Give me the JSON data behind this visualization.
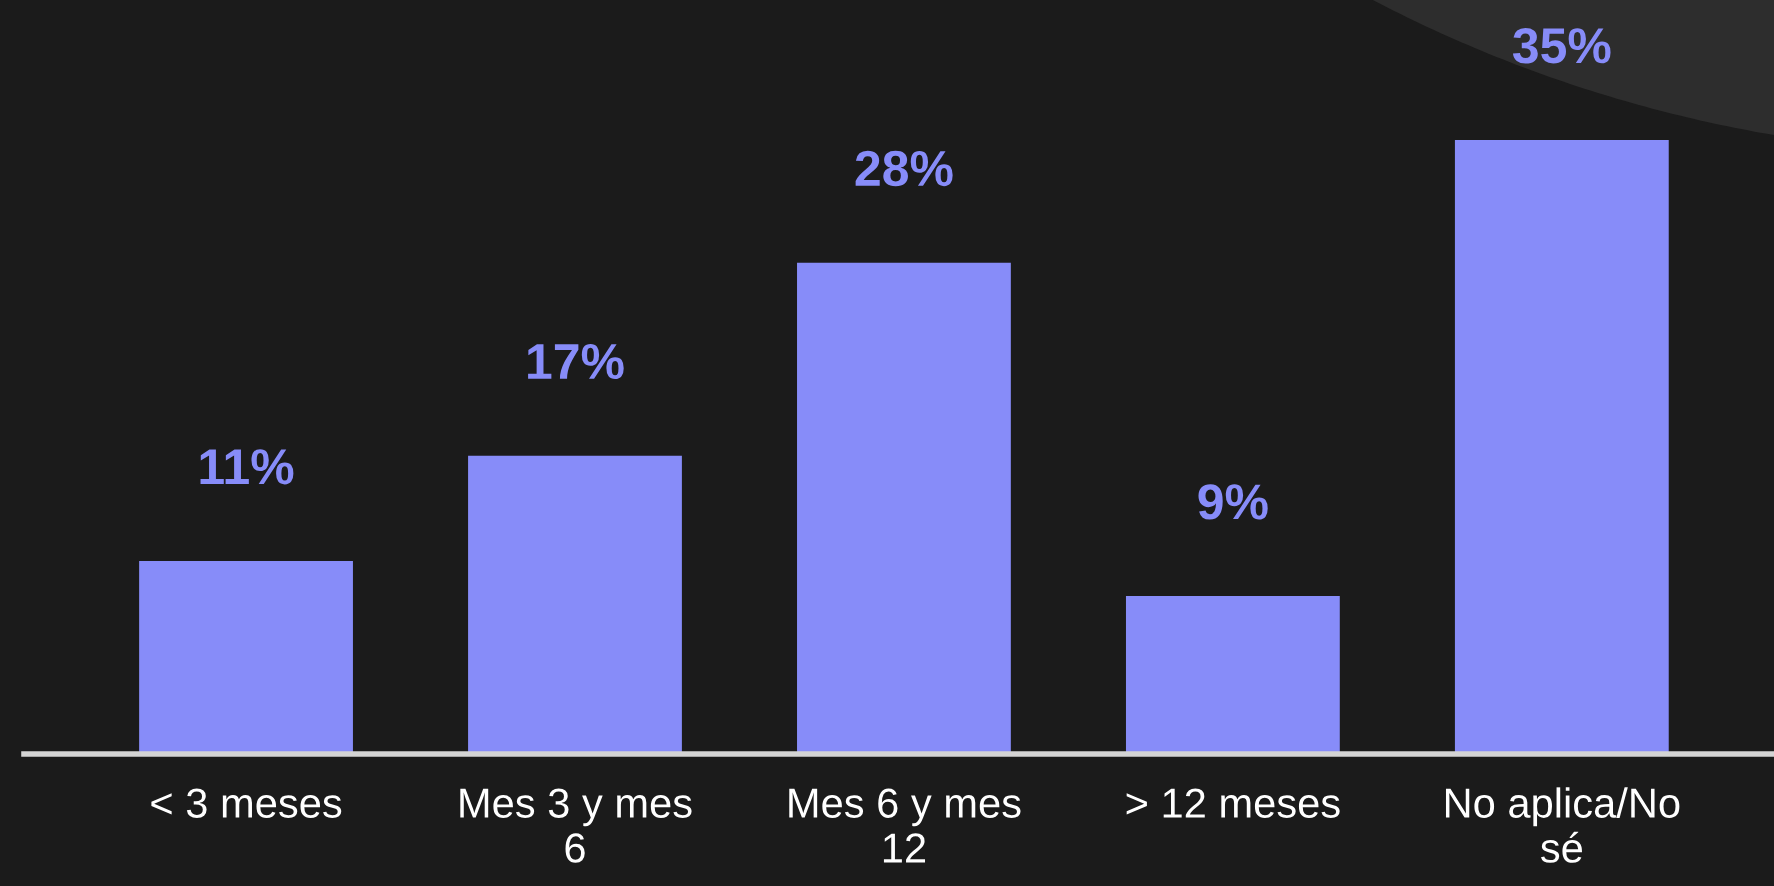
{
  "chart_data": {
    "type": "bar",
    "categories": [
      "< 3 meses",
      "Mes 3 y mes\n6",
      "Mes 6 y mes\n12",
      "> 12 meses",
      "No aplica/No\nsé"
    ],
    "values": [
      11,
      17,
      28,
      9,
      35
    ],
    "color": "#878cf9",
    "relative": false,
    "value_labels": [
      "11%",
      "17%",
      "28%",
      "9%",
      "35%"
    ],
    "grid": false,
    "legend": false
  }
}
